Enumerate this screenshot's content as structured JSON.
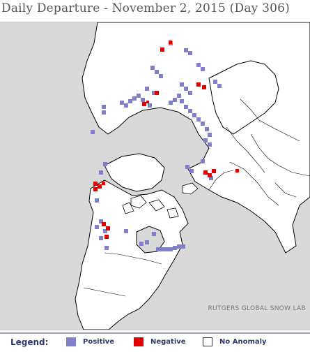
{
  "title": "Daily Departure - November 2, 2015 (Day 306)",
  "credit": "RUTGERS GLOBAL SNOW LAB",
  "legend": {
    "title": "Legend:",
    "items": [
      {
        "label": "Positive",
        "color": "#8080c8"
      },
      {
        "label": "Negative",
        "color": "#e00000"
      },
      {
        "label": "No Anomaly",
        "color": "#ffffff"
      }
    ]
  },
  "colors": {
    "land": "#ffffff",
    "ocean": "#d9d9d9",
    "coastline": "#000000"
  }
}
